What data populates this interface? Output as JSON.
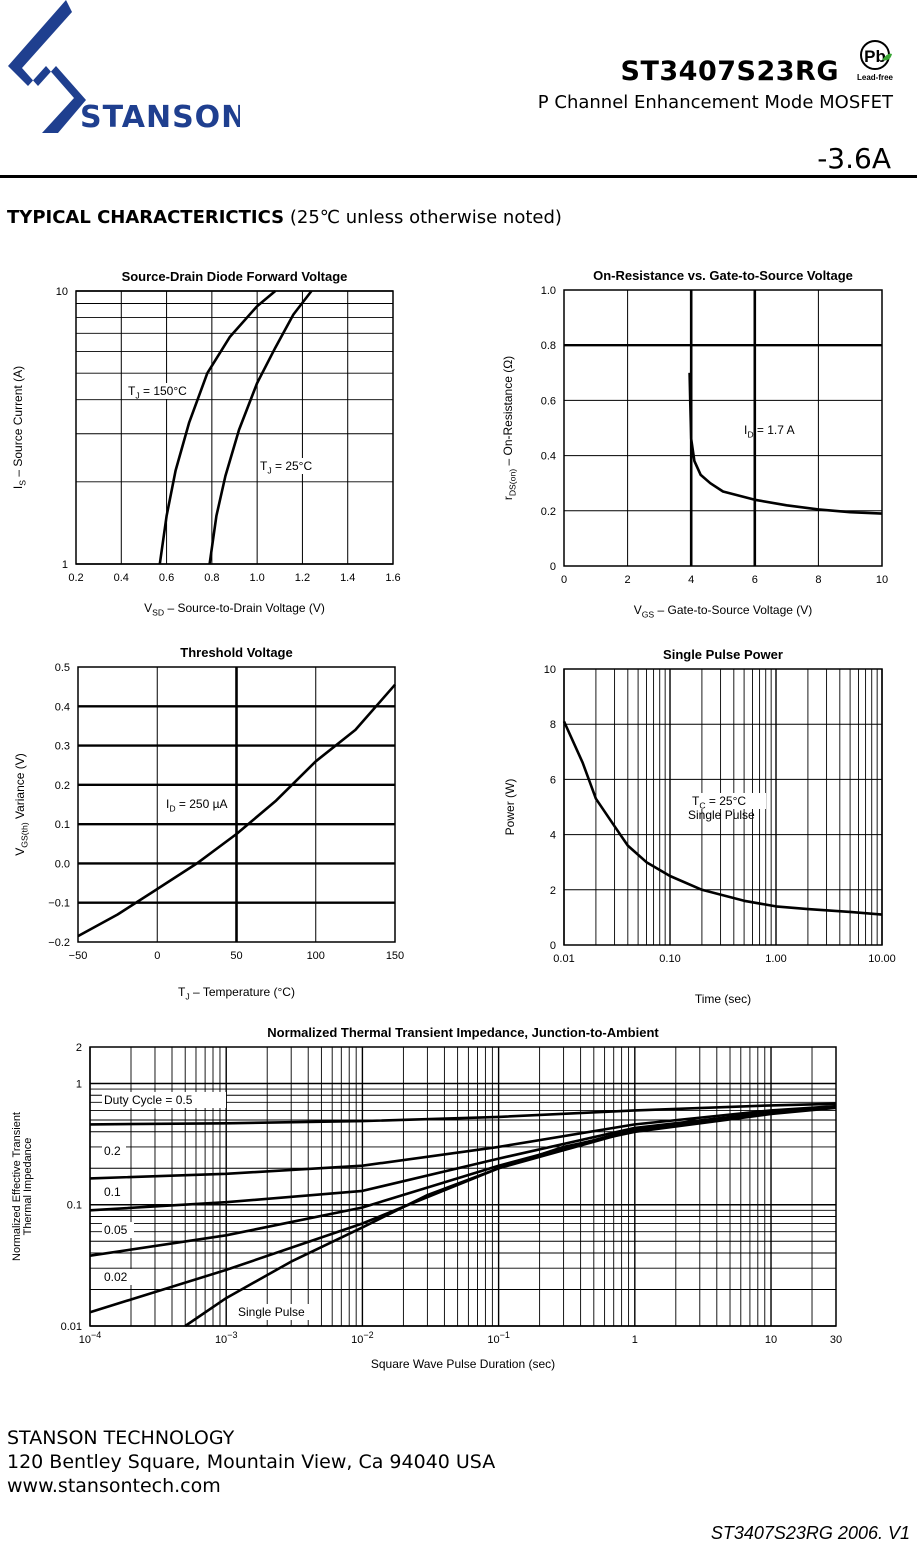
{
  "header": {
    "company": "STANSON",
    "part_number": "ST3407S23RG",
    "subtitle": "P Channel Enhancement Mode MOSFET",
    "current": "-3.6A",
    "leadfree_badge": {
      "symbol": "Pb",
      "label": "Lead-free"
    }
  },
  "section": {
    "title_bold": "TYPICAL CHARACTERICTICS",
    "title_rest": " (25℃ unless otherwise noted)"
  },
  "footer": {
    "company": "STANSON TECHNOLOGY",
    "address": "120 Bentley Square, Mountain View, Ca 94040 USA",
    "website": "www.stansontech.com",
    "version": "ST3407S23RG 2006. V1"
  },
  "colors": {
    "brand_blue": "#1f3f8f",
    "leadfree_green": "#3aa635",
    "ink": "#000000"
  },
  "chart_data": [
    {
      "id": "c1",
      "type": "line",
      "yscale": "log",
      "title": "Source-Drain Diode Forward Voltage",
      "xlabel_sym": "V",
      "xlabel_sub": "SD",
      "xlabel_rest": " –  Source-to-Drain Voltage (V)",
      "ylabel_sym": "I",
      "ylabel_sub": "S",
      "ylabel_rest": " –  Source Current (A)",
      "xlim": [
        0.2,
        1.6
      ],
      "ylim": [
        1,
        10
      ],
      "xticks": [
        "0.2",
        "0.4",
        "0.6",
        "0.8",
        "1.0",
        "1.2",
        "1.4",
        "1.6"
      ],
      "yticks": [
        "1",
        "10"
      ],
      "series": [
        {
          "name": "TJ = 150°C",
          "label_sym": "T",
          "label_sub": "J",
          "label_rest": " = 150°C",
          "x": [
            0.57,
            0.6,
            0.64,
            0.7,
            0.78,
            0.88,
            1.0,
            1.08
          ],
          "y": [
            1,
            1.5,
            2.2,
            3.3,
            5,
            6.8,
            8.8,
            10
          ]
        },
        {
          "name": "TJ = 25°C",
          "label_sym": "T",
          "label_sub": "J",
          "label_rest": " = 25°C",
          "x": [
            0.79,
            0.82,
            0.86,
            0.92,
            1.0,
            1.08,
            1.16,
            1.24
          ],
          "y": [
            1,
            1.5,
            2.1,
            3.1,
            4.6,
            6.2,
            8.2,
            10
          ]
        }
      ]
    },
    {
      "id": "c2",
      "type": "line",
      "title": "On-Resistance vs. Gate-to-Source Voltage",
      "xlabel_sym": "V",
      "xlabel_sub": "GS",
      "xlabel_rest": " – Gate-to-Source Voltage (V)",
      "ylabel_sym": "r",
      "ylabel_sub": "DS(on)",
      "ylabel_rest": "  –  On-Resistance  (Ω)",
      "xlim": [
        0,
        10
      ],
      "ylim": [
        0,
        1.0
      ],
      "xticks": [
        "0",
        "2",
        "4",
        "6",
        "8",
        "10"
      ],
      "yticks": [
        "0",
        "0.2",
        "0.4",
        "0.6",
        "0.8",
        "1.0"
      ],
      "series": [
        {
          "name": "ID = 1.7 A",
          "label_sym": "I",
          "label_sub": "D",
          "label_rest": " = 1.7 A",
          "x": [
            3.95,
            3.97,
            4.0,
            4.1,
            4.3,
            4.6,
            5.0,
            5.5,
            6.0,
            7.0,
            8.0,
            9.0,
            10.0
          ],
          "y": [
            0.7,
            0.6,
            0.46,
            0.38,
            0.33,
            0.3,
            0.27,
            0.255,
            0.24,
            0.22,
            0.205,
            0.195,
            0.19
          ]
        }
      ]
    },
    {
      "id": "c3",
      "type": "line",
      "title": "Threshold Voltage",
      "xlabel_sym": "T",
      "xlabel_sub": "J",
      "xlabel_rest": " – Temperature (°C)",
      "ylabel_sym": "V",
      "ylabel_sub": "GS(th)",
      "ylabel_rest": " Variance (V)",
      "xlim": [
        -50,
        150
      ],
      "ylim": [
        -0.2,
        0.5
      ],
      "xticks": [
        "−50",
        "0",
        "50",
        "100",
        "150"
      ],
      "yticks": [
        "−0.2",
        "−0.1",
        "0.0",
        "0.1",
        "0.2",
        "0.3",
        "0.4",
        "0.5"
      ],
      "series": [
        {
          "name": "ID = 250 µA",
          "label_sym": "I",
          "label_sub": "D",
          "label_rest": " = 250 µA",
          "x": [
            -50,
            -25,
            0,
            25,
            50,
            75,
            100,
            125,
            150
          ],
          "y": [
            -0.185,
            -0.13,
            -0.065,
            0.0,
            0.075,
            0.16,
            0.26,
            0.34,
            0.455
          ]
        }
      ]
    },
    {
      "id": "c4",
      "type": "line",
      "xscale": "log",
      "title": "Single Pulse Power",
      "xlabel_sym": "Time (sec)",
      "xlabel_sub": "",
      "xlabel_rest": "",
      "ylabel_sym": "Power  (W)",
      "ylabel_sub": "",
      "ylabel_rest": "",
      "xlim": [
        0.01,
        10
      ],
      "ylim": [
        0,
        10
      ],
      "xticks": [
        "0.01",
        "0.10",
        "1.00",
        "10.00"
      ],
      "yticks": [
        "0",
        "2",
        "4",
        "6",
        "8",
        "10"
      ],
      "series": [
        {
          "name": "TC = 25°C Single Pulse",
          "label_sym": "T",
          "label_sub": "C",
          "label_rest": " = 25°C",
          "label_line2": "Single Pulse",
          "x": [
            0.01,
            0.015,
            0.02,
            0.03,
            0.04,
            0.06,
            0.1,
            0.2,
            0.5,
            1,
            2,
            5,
            10
          ],
          "y": [
            8.1,
            6.6,
            5.3,
            4.3,
            3.6,
            3.0,
            2.5,
            2.0,
            1.6,
            1.4,
            1.3,
            1.2,
            1.1
          ]
        }
      ]
    },
    {
      "id": "c5",
      "type": "line",
      "xscale": "log",
      "yscale": "log",
      "title": "Normalized Thermal Transient Impedance, Junction-to-Ambient",
      "xlabel": "Square Wave Pulse Duration (sec)",
      "ylabel_line1": "Normalized Effective Transient",
      "ylabel_line2": "Thermal Impedance",
      "xlim": [
        0.0001,
        30
      ],
      "ylim": [
        0.01,
        2
      ],
      "xticks": [
        {
          "base": "10",
          "exp": "−4"
        },
        {
          "base": "10",
          "exp": "−3"
        },
        {
          "base": "10",
          "exp": "−2"
        },
        {
          "base": "10",
          "exp": "−1"
        },
        {
          "base": "1",
          "exp": ""
        },
        {
          "base": "10",
          "exp": ""
        },
        {
          "base": "30",
          "exp": ""
        }
      ],
      "yticks": [
        "0.01",
        "0.1",
        "1",
        "2"
      ],
      "series": [
        {
          "name": "Duty Cycle = 0.5",
          "x": [
            0.0001,
            0.001,
            0.01,
            0.1,
            1,
            10,
            30
          ],
          "y": [
            0.46,
            0.47,
            0.49,
            0.53,
            0.6,
            0.66,
            0.68
          ]
        },
        {
          "name": "0.2",
          "x": [
            0.0001,
            0.001,
            0.01,
            0.1,
            1,
            10,
            30
          ],
          "y": [
            0.165,
            0.18,
            0.21,
            0.3,
            0.46,
            0.6,
            0.65
          ]
        },
        {
          "name": "0.1",
          "x": [
            0.0001,
            0.001,
            0.01,
            0.1,
            1,
            10,
            30
          ],
          "y": [
            0.09,
            0.105,
            0.13,
            0.24,
            0.43,
            0.58,
            0.64
          ]
        },
        {
          "name": "0.05",
          "x": [
            0.0001,
            0.001,
            0.01,
            0.1,
            1,
            10,
            30
          ],
          "y": [
            0.038,
            0.056,
            0.095,
            0.21,
            0.42,
            0.58,
            0.64
          ]
        },
        {
          "name": "0.02",
          "x": [
            0.0001,
            0.001,
            0.01,
            0.1,
            1,
            10,
            30
          ],
          "y": [
            0.013,
            0.029,
            0.07,
            0.2,
            0.41,
            0.57,
            0.64
          ]
        },
        {
          "name": "Single Pulse",
          "x": [
            0.0005,
            0.001,
            0.003,
            0.01,
            0.03,
            0.1,
            0.3,
            1,
            10,
            30
          ],
          "y": [
            0.01,
            0.017,
            0.034,
            0.065,
            0.12,
            0.2,
            0.3,
            0.4,
            0.56,
            0.63
          ]
        }
      ]
    }
  ]
}
